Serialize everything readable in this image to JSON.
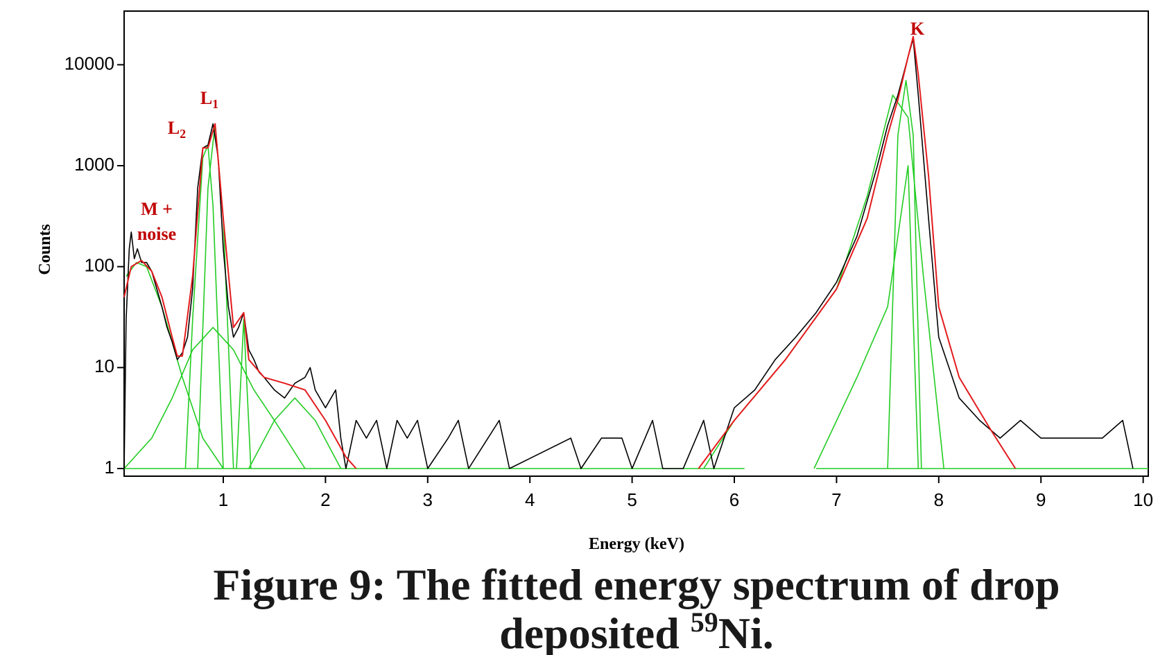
{
  "chart_data": {
    "type": "line",
    "xlabel": "Energy (keV)",
    "ylabel": "Counts",
    "log_y": true,
    "grid": false,
    "xlim": [
      0.03,
      10.05
    ],
    "ylim": [
      0.84,
      34000
    ],
    "xticks": [
      1,
      2,
      3,
      4,
      5,
      6,
      7,
      8,
      9,
      10
    ],
    "yticks": [
      1,
      10,
      100,
      1000,
      10000
    ],
    "spectrum": {
      "color": "#000000",
      "x": [
        0.03,
        0.05,
        0.08,
        0.1,
        0.13,
        0.16,
        0.2,
        0.25,
        0.3,
        0.35,
        0.4,
        0.45,
        0.5,
        0.55,
        0.6,
        0.65,
        0.7,
        0.75,
        0.8,
        0.85,
        0.9,
        0.95,
        1.0,
        1.05,
        1.1,
        1.15,
        1.2,
        1.25,
        1.3,
        1.35,
        1.4,
        1.5,
        1.6,
        1.7,
        1.8,
        1.85,
        1.9,
        2.0,
        2.1,
        2.15,
        2.2,
        2.3,
        2.4,
        2.5,
        2.6,
        2.7,
        2.8,
        2.9,
        3.0,
        3.2,
        3.3,
        3.4,
        3.7,
        3.8,
        4.4,
        4.5,
        4.7,
        4.9,
        5.0,
        5.2,
        5.3,
        5.5,
        5.7,
        5.8,
        5.9,
        6.0,
        6.2,
        6.4,
        6.6,
        6.8,
        7.0,
        7.2,
        7.4,
        7.5,
        7.6,
        7.7,
        7.75,
        7.8,
        7.9,
        8.0,
        8.1,
        8.2,
        8.4,
        8.6,
        8.8,
        9.0,
        9.2,
        9.4,
        9.6,
        9.8,
        9.9
      ],
      "values": [
        1,
        30,
        150,
        220,
        120,
        150,
        110,
        110,
        90,
        60,
        40,
        25,
        18,
        12,
        14,
        20,
        60,
        600,
        1500,
        1600,
        2600,
        1200,
        150,
        40,
        20,
        25,
        35,
        15,
        12,
        9,
        8,
        6,
        5,
        7,
        8,
        10,
        6,
        4,
        6,
        2,
        1,
        3,
        2,
        3,
        1,
        3,
        2,
        3,
        1,
        2,
        3,
        1,
        3,
        1,
        2,
        1,
        2,
        2,
        1,
        3,
        1,
        1,
        3,
        1,
        2,
        4,
        6,
        12,
        20,
        35,
        70,
        200,
        1000,
        2500,
        5000,
        12000,
        18000,
        5000,
        300,
        20,
        10,
        5,
        3,
        2,
        3,
        2,
        2,
        2,
        2,
        3,
        1
      ]
    },
    "fit": {
      "color": "#e31a1c",
      "x": [
        0.03,
        0.1,
        0.2,
        0.3,
        0.4,
        0.5,
        0.55,
        0.6,
        0.7,
        0.8,
        0.85,
        0.92,
        1.0,
        1.1,
        1.2,
        1.25,
        1.4,
        1.6,
        1.8,
        2.0,
        2.2,
        2.3,
        4.0,
        5.65,
        6.0,
        6.5,
        7.0,
        7.3,
        7.5,
        7.6,
        7.7,
        7.75,
        7.8,
        7.9,
        8.0,
        8.2,
        8.5,
        8.75
      ],
      "values": [
        50,
        100,
        115,
        90,
        50,
        20,
        13,
        13,
        80,
        1500,
        1500,
        2600,
        300,
        25,
        35,
        12,
        8,
        7,
        6,
        3,
        1.3,
        1,
        null,
        1,
        3,
        12,
        60,
        300,
        2000,
        4500,
        12000,
        19000,
        8000,
        800,
        40,
        8,
        2.5,
        1
      ]
    },
    "components_color": "#22cc22",
    "components": [
      {
        "x": [
          0.05,
          0.15,
          0.25,
          0.4,
          0.6,
          0.8,
          1.0
        ],
        "values": [
          80,
          110,
          100,
          40,
          8,
          2,
          1
        ]
      },
      {
        "x": [
          0.03,
          0.3,
          0.5,
          0.7,
          0.9,
          1.1,
          1.3,
          1.5,
          1.8
        ],
        "values": [
          1,
          2,
          5,
          15,
          25,
          15,
          6,
          3,
          1
        ]
      },
      {
        "x": [
          0.63,
          0.7,
          0.8,
          0.85,
          0.9,
          1.0
        ],
        "values": [
          1,
          30,
          1200,
          1600,
          400,
          1
        ]
      },
      {
        "x": [
          0.75,
          0.85,
          0.92,
          1.0,
          1.1
        ],
        "values": [
          1,
          600,
          2600,
          300,
          1
        ]
      },
      {
        "x": [
          1.13,
          1.2,
          1.27
        ],
        "values": [
          1,
          30,
          1
        ]
      },
      {
        "x": [
          1.25,
          1.5,
          1.7,
          1.9,
          2.15
        ],
        "values": [
          1,
          3,
          5,
          3,
          1
        ]
      },
      {
        "x": [
          5.7,
          6.0,
          6.5,
          7.0,
          7.3,
          7.55,
          7.7,
          7.85,
          8.05
        ],
        "values": [
          1,
          3,
          12,
          60,
          500,
          5000,
          3000,
          80,
          1
        ]
      },
      {
        "x": [
          7.5,
          7.6,
          7.68,
          7.75,
          7.83
        ],
        "values": [
          1,
          2000,
          7000,
          2000,
          1
        ]
      },
      {
        "x": [
          6.78,
          7.2,
          7.5,
          7.7,
          7.8
        ],
        "values": [
          1,
          8,
          40,
          1000,
          1
        ]
      },
      {
        "x": [
          0.03,
          6.1
        ],
        "values": [
          1,
          1
        ]
      },
      {
        "x": [
          6.8,
          10.05
        ],
        "values": [
          1,
          1
        ]
      }
    ],
    "annotations": [
      {
        "lines": [
          "M +",
          "noise"
        ]
      },
      {
        "text": "L",
        "sub": "2"
      },
      {
        "text": "L",
        "sub": "1"
      },
      {
        "text": "K"
      }
    ],
    "caption": {
      "line1": "Figure 9: The fitted energy spectrum of drop",
      "line2": "deposited ",
      "sup": "59",
      "line2_end": "Ni."
    }
  }
}
